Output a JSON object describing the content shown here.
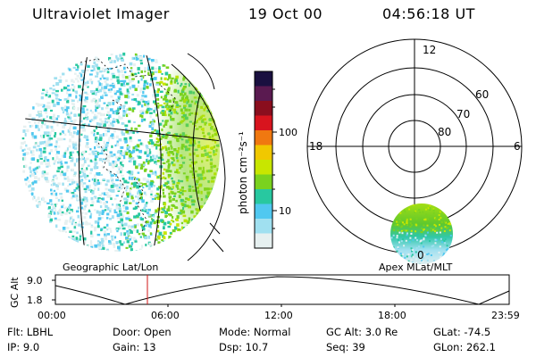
{
  "header": {
    "instrument": "Ultraviolet Imager",
    "date": "19 Oct 00",
    "time": "04:56:18 UT"
  },
  "colorbar": {
    "unit_label": "photon cm⁻²s⁻¹",
    "ticks": [
      "100",
      "10"
    ],
    "colors": [
      "#1a1040",
      "#5a1a50",
      "#8a0e1e",
      "#d8141e",
      "#f07810",
      "#f0c800",
      "#c8e600",
      "#7ad21e",
      "#28c8a0",
      "#50c8f0",
      "#a0e0f0",
      "#e6f0f0"
    ]
  },
  "geo_panel": {
    "caption": "Geographic Lat/Lon"
  },
  "polar_panel": {
    "caption": "Apex MLat/MLT",
    "mlt_labels": {
      "top": "12",
      "left": "18",
      "right": "6",
      "bottom": "0"
    },
    "lat_labels": [
      "60",
      "70",
      "80"
    ]
  },
  "altitude_plot": {
    "ylabel": "GC Alt",
    "yticks": [
      "9.0",
      "1.8"
    ],
    "xticks": [
      "00:00",
      "06:00",
      "12:00",
      "18:00",
      "23:59"
    ],
    "marker_time": "04:56"
  },
  "info": {
    "filter": "Flt: LBHL",
    "ip": "IP: 9.0",
    "door": "Door: Open",
    "gain": "Gain: 13",
    "mode": "Mode: Normal",
    "dsp": "Dsp: 10.7",
    "gc_alt": "GC Alt: 3.0 Re",
    "seq": "Seq: 39",
    "glat": "GLat: -74.5",
    "glon": "GLon: 262.1"
  }
}
